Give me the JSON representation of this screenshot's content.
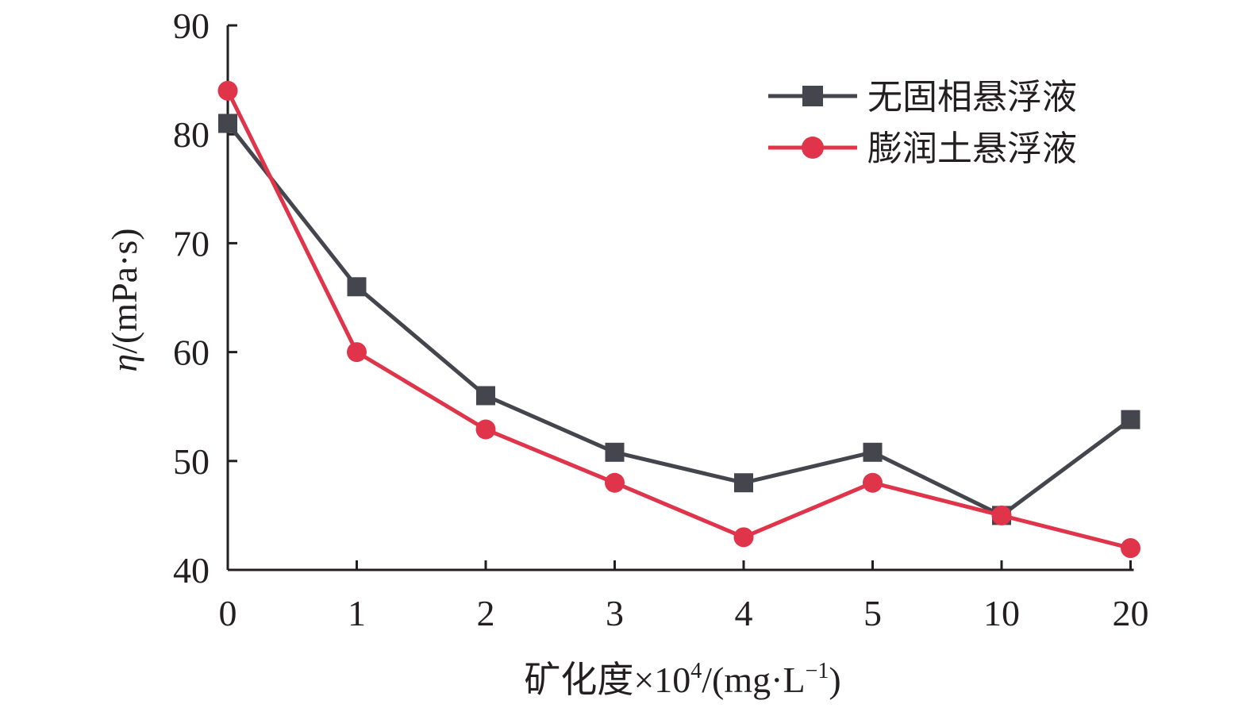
{
  "chart_data": {
    "type": "line",
    "categories": [
      "0",
      "1",
      "2",
      "3",
      "4",
      "5",
      "10",
      "20"
    ],
    "series": [
      {
        "name": "无固相悬浮液",
        "marker": "square",
        "color": "#45454d",
        "values": [
          81,
          66,
          56,
          50.8,
          48,
          50.8,
          45,
          53.8
        ]
      },
      {
        "name": "膨润土悬浮液",
        "marker": "circle",
        "color": "#e0344a",
        "values": [
          84,
          60,
          52.9,
          48,
          43,
          48,
          45,
          42
        ]
      }
    ],
    "xlabel": {
      "main": "矿化度×10",
      "sup1": "4",
      "mid": "/(mg·L",
      "sup2": "−1",
      "end": ")"
    },
    "ylabel": {
      "sym": "η",
      "unit": "/(mPa·s)"
    },
    "ylim": [
      40,
      90
    ],
    "yticks": [
      "40",
      "50",
      "60",
      "70",
      "80",
      "90"
    ],
    "grid": false,
    "legend_position": "top-right"
  }
}
